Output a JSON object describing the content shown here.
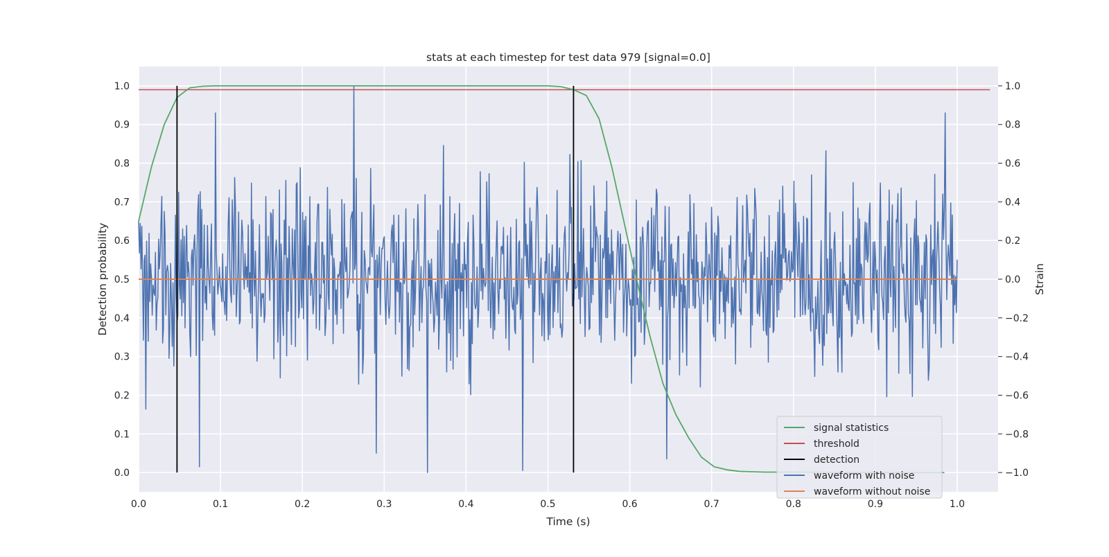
{
  "chart_data": {
    "type": "line",
    "title": "stats at each timestep for test data 979 [signal=0.0]",
    "xlabel": "Time (s)",
    "ylabel_left": "Detection probability",
    "ylabel_right": "Strain",
    "xlim": [
      0.0,
      1.05
    ],
    "ylim_left": [
      -0.05,
      1.05
    ],
    "ylim_right": [
      -1.1,
      1.1
    ],
    "x_ticks": [
      "0.0",
      "0.1",
      "0.2",
      "0.3",
      "0.4",
      "0.5",
      "0.6",
      "0.7",
      "0.8",
      "0.9",
      "1.0"
    ],
    "y_ticks_left": [
      "0.0",
      "0.1",
      "0.2",
      "0.3",
      "0.4",
      "0.5",
      "0.6",
      "0.7",
      "0.8",
      "0.9",
      "1.0"
    ],
    "y_ticks_right": [
      "−1.0",
      "−0.8",
      "−0.6",
      "−0.4",
      "−0.2",
      "0.0",
      "0.2",
      "0.4",
      "0.6",
      "0.8",
      "1.0"
    ],
    "grid": true,
    "legend_position": "lower-right",
    "colors": {
      "background": "#eaeaf2",
      "grid": "#ffffff",
      "signal_statistics": "#55a868",
      "threshold": "#c44e52",
      "detection": "#000000",
      "waveform_with_noise": "#4c72b0",
      "waveform_without_noise": "#dd8452"
    },
    "series": [
      {
        "name": "signal statistics",
        "axis": "left",
        "x": [
          0.0,
          0.0156,
          0.0313,
          0.0469,
          0.0625,
          0.0781,
          0.0938,
          0.1094,
          0.125,
          0.25,
          0.375,
          0.5,
          0.5156,
          0.5313,
          0.5469,
          0.5625,
          0.5781,
          0.5938,
          0.6094,
          0.625,
          0.6406,
          0.6563,
          0.6719,
          0.6875,
          0.7031,
          0.7188,
          0.7344,
          0.75,
          0.7656,
          0.7813,
          0.8,
          0.9,
          0.9844
        ],
        "y": [
          0.65,
          0.79,
          0.9,
          0.97,
          0.995,
          0.999,
          1.0,
          1.0,
          1.0,
          1.0,
          1.0,
          1.0,
          0.998,
          0.99,
          0.975,
          0.915,
          0.79,
          0.64,
          0.49,
          0.35,
          0.23,
          0.15,
          0.09,
          0.04,
          0.015,
          0.007,
          0.003,
          0.002,
          0.001,
          0.001,
          0.001,
          0.0,
          0.0
        ]
      },
      {
        "name": "threshold",
        "axis": "left",
        "x": [
          0.0,
          1.04
        ],
        "y": [
          0.99,
          0.99
        ]
      },
      {
        "name": "detection",
        "axis": "left",
        "x": [
          0.0469,
          0.5313
        ],
        "y_range": [
          0.0,
          1.0
        ]
      },
      {
        "name": "waveform with noise",
        "axis": "right",
        "x_range": [
          0.0,
          1.0
        ],
        "n_samples": 1024,
        "spot_values": [
          {
            "x": 0.0,
            "y": 0.3
          },
          {
            "x": 0.074,
            "y": -0.97
          },
          {
            "x": 0.094,
            "y": 0.86
          },
          {
            "x": 0.2625,
            "y": 1.0
          },
          {
            "x": 0.29,
            "y": -0.9
          },
          {
            "x": 0.3525,
            "y": -1.0
          },
          {
            "x": 0.469,
            "y": -0.99
          },
          {
            "x": 0.645,
            "y": -0.93
          },
          {
            "x": 0.985,
            "y": 0.86
          }
        ],
        "y_range": [
          -1.0,
          1.0
        ]
      },
      {
        "name": "waveform without noise",
        "axis": "right",
        "x": [
          0.0,
          1.0
        ],
        "y": [
          0.0,
          0.0
        ]
      }
    ]
  }
}
